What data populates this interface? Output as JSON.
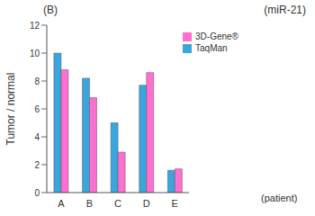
{
  "chart_data": {
    "type": "bar",
    "title": "(B)",
    "subtitle": "(miR-21)",
    "x_label": "(patient)",
    "y_label": "Tumor / normal",
    "categories": [
      "A",
      "B",
      "C",
      "D",
      "E"
    ],
    "series": [
      {
        "name": "TaqMan",
        "color": "#3aa6de",
        "values": [
          10.0,
          8.2,
          5.0,
          7.7,
          1.6
        ]
      },
      {
        "name": "3D-Gene®",
        "color": "#ff6fd2",
        "values": [
          8.8,
          6.8,
          2.9,
          8.6,
          1.7
        ]
      }
    ],
    "ylim": [
      0,
      12
    ],
    "yticks": [
      0,
      2,
      4,
      6,
      8,
      10,
      12
    ],
    "grid": false,
    "legend": "upper right"
  }
}
